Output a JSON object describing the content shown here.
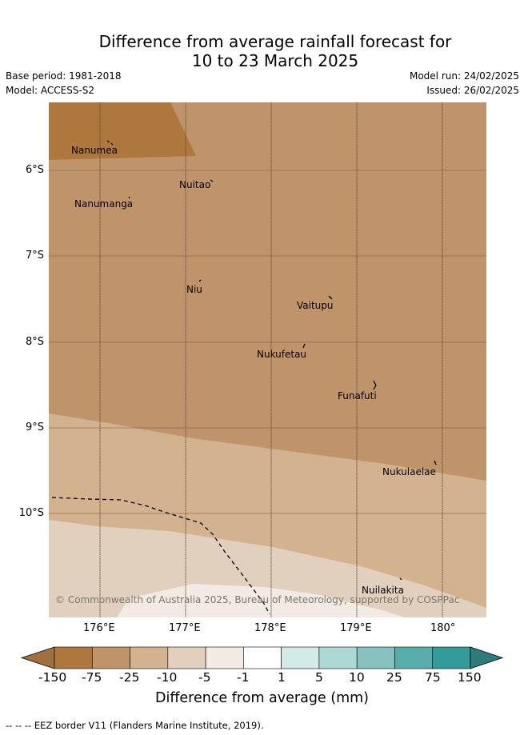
{
  "header": {
    "title_line1": "Difference from average rainfall forecast for",
    "title_line2": "10 to 23 March 2025",
    "base_period": "Base period: 1981-2018",
    "model": "Model: ACCESS-S2",
    "model_run": "Model run: 24/02/2025",
    "issued": "Issued: 26/02/2025"
  },
  "map": {
    "lat_labels": [
      "6°S",
      "7°S",
      "8°S",
      "9°S",
      "10°S"
    ],
    "lon_labels": [
      "176°E",
      "177°E",
      "178°E",
      "179°E",
      "180°"
    ],
    "places": [
      "Nanumea",
      "Nuitao",
      "Nanumanga",
      "Niu",
      "Vaitupu",
      "Nukufetau",
      "Funafuti",
      "Nukulaelae",
      "Nuilakita"
    ],
    "copyright": "© Commonwealth of Australia 2025, Bureau of Meteorology, supported by COSPPac"
  },
  "colorbar": {
    "labels": [
      "-150",
      "-75",
      "-25",
      "-10",
      "-5",
      "-1",
      "1",
      "5",
      "10",
      "25",
      "75",
      "150"
    ],
    "colors": [
      "#a0713e",
      "#ad773d",
      "#c0946a",
      "#d3b290",
      "#e2d0be",
      "#f1ebe4",
      "#ffffff",
      "#d4eae8",
      "#acd8d6",
      "#87c2c0",
      "#5aadad",
      "#339b99",
      "#2d7c7c"
    ],
    "title": "Difference from average (mm)"
  },
  "footer": {
    "note": "--  --  -- EEZ border V11 (Flanders Marine Institute, 2019)."
  }
}
